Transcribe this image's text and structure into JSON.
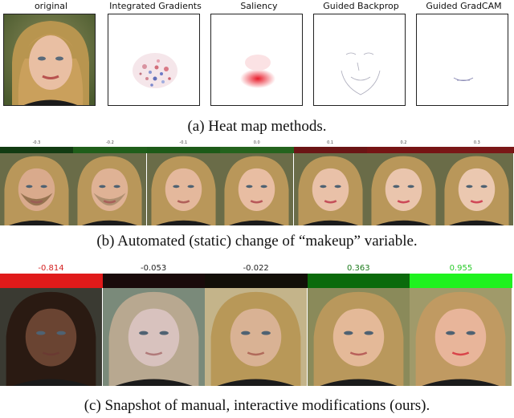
{
  "section_a": {
    "titles": [
      "original",
      "Integrated Gradients",
      "Saliency",
      "Guided Backprop",
      "Guided GradCAM"
    ],
    "caption": "(a) Heat map methods."
  },
  "section_b": {
    "labels": [
      "-0.3",
      "-0.2",
      "-0.1",
      "0.0",
      "0.1",
      "0.2",
      "0.3"
    ],
    "bar_colors": [
      "#123b12",
      "#1f5e1a",
      "#1c5a18",
      "#24631d",
      "#6b1515",
      "#761414",
      "#7a1717"
    ],
    "caption": "(b) Automated (static) change of “makeup” variable."
  },
  "section_c": {
    "labels": [
      "-0.814",
      "-0.053",
      "-0.022",
      "0.363",
      "0.955"
    ],
    "label_colors": [
      "#d42020",
      "#222222",
      "#222222",
      "#1a7a1a",
      "#2acb2a"
    ],
    "bar_colors": [
      "#e01a1a",
      "#1a0b0b",
      "#130f08",
      "#0b6a0b",
      "#1ff21f"
    ],
    "caption": "(c) Snapshot of manual, interactive modifications (ours)."
  }
}
